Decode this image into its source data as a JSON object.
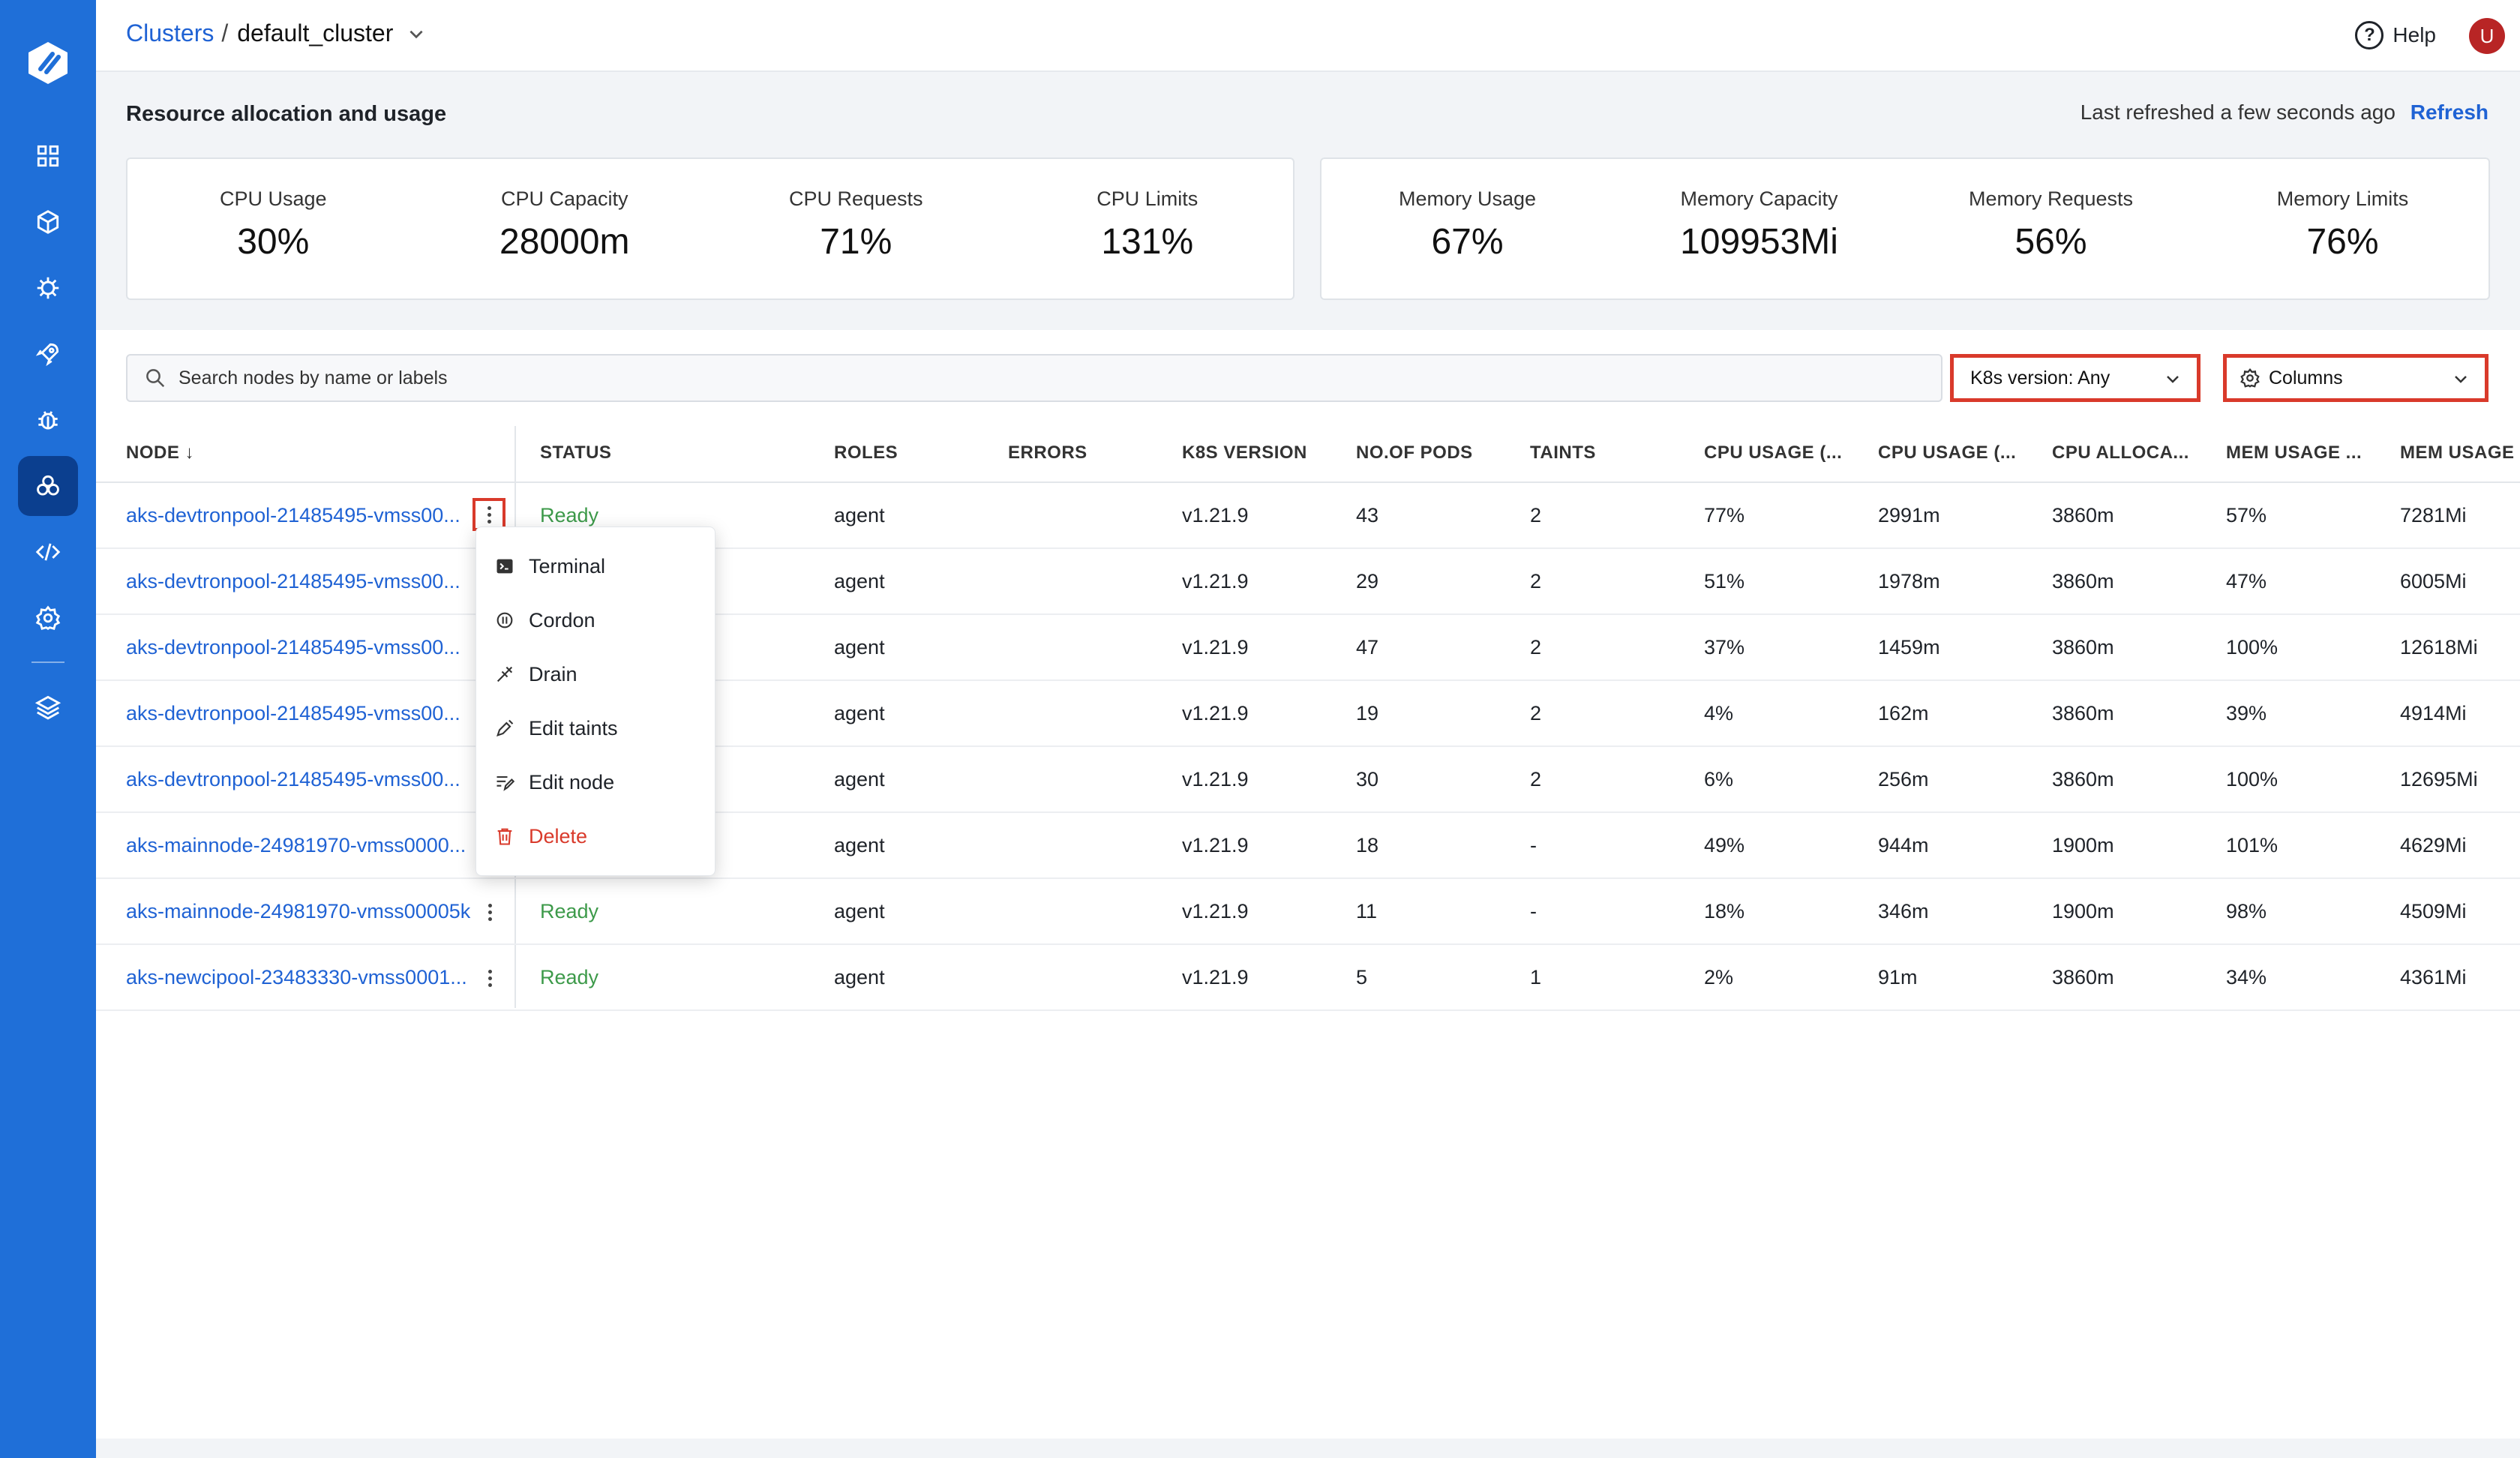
{
  "breadcrumb": {
    "parent": "Clusters",
    "separator": "/",
    "current": "default_cluster"
  },
  "header": {
    "help_label": "Help",
    "avatar_initial": "U"
  },
  "resource": {
    "title": "Resource allocation and usage",
    "refreshed_text": "Last refreshed a few seconds ago",
    "refresh_label": "Refresh",
    "cpu": [
      {
        "label": "CPU Usage",
        "value": "30%"
      },
      {
        "label": "CPU Capacity",
        "value": "28000m"
      },
      {
        "label": "CPU Requests",
        "value": "71%"
      },
      {
        "label": "CPU Limits",
        "value": "131%"
      }
    ],
    "memory": [
      {
        "label": "Memory Usage",
        "value": "67%"
      },
      {
        "label": "Memory Capacity",
        "value": "109953Mi"
      },
      {
        "label": "Memory Requests",
        "value": "56%"
      },
      {
        "label": "Memory Limits",
        "value": "76%"
      }
    ]
  },
  "filters": {
    "search_placeholder": "Search nodes by name or labels",
    "k8s_version": "K8s version: Any",
    "columns": "Columns"
  },
  "table": {
    "headers": [
      "NODE",
      "STATUS",
      "ROLES",
      "ERRORS",
      "K8S VERSION",
      "NO.OF PODS",
      "TAINTS",
      "CPU USAGE (...",
      "CPU USAGE (...",
      "CPU ALLOCA...",
      "MEM USAGE ...",
      "MEM USAGE ..."
    ],
    "sort_indicator": "↓",
    "rows": [
      [
        "aks-devtronpool-21485495-vmss00...",
        "Ready",
        "agent",
        "",
        "v1.21.9",
        "43",
        "2",
        "77%",
        "2991m",
        "3860m",
        "57%",
        "7281Mi"
      ],
      [
        "aks-devtronpool-21485495-vmss00...",
        "",
        "agent",
        "",
        "v1.21.9",
        "29",
        "2",
        "51%",
        "1978m",
        "3860m",
        "47%",
        "6005Mi"
      ],
      [
        "aks-devtronpool-21485495-vmss00...",
        "",
        "agent",
        "",
        "v1.21.9",
        "47",
        "2",
        "37%",
        "1459m",
        "3860m",
        "100%",
        "12618Mi"
      ],
      [
        "aks-devtronpool-21485495-vmss00...",
        "",
        "agent",
        "",
        "v1.21.9",
        "19",
        "2",
        "4%",
        "162m",
        "3860m",
        "39%",
        "4914Mi"
      ],
      [
        "aks-devtronpool-21485495-vmss00...",
        "",
        "agent",
        "",
        "v1.21.9",
        "30",
        "2",
        "6%",
        "256m",
        "3860m",
        "100%",
        "12695Mi"
      ],
      [
        "aks-mainnode-24981970-vmss0000...",
        "",
        "agent",
        "",
        "v1.21.9",
        "18",
        "-",
        "49%",
        "944m",
        "1900m",
        "101%",
        "4629Mi"
      ],
      [
        "aks-mainnode-24981970-vmss00005k",
        "Ready",
        "agent",
        "",
        "v1.21.9",
        "11",
        "-",
        "18%",
        "346m",
        "1900m",
        "98%",
        "4509Mi"
      ],
      [
        "aks-newcipool-23483330-vmss0001...",
        "Ready",
        "agent",
        "",
        "v1.21.9",
        "5",
        "1",
        "2%",
        "91m",
        "3860m",
        "34%",
        "4361Mi"
      ]
    ]
  },
  "menu": {
    "items": [
      {
        "label": "Terminal",
        "icon": "terminal-icon"
      },
      {
        "label": "Cordon",
        "icon": "cordon-icon"
      },
      {
        "label": "Drain",
        "icon": "drain-icon"
      },
      {
        "label": "Edit taints",
        "icon": "edit-taints-icon"
      },
      {
        "label": "Edit node",
        "icon": "edit-node-icon"
      },
      {
        "label": "Delete",
        "icon": "trash-icon"
      }
    ]
  },
  "colors": {
    "sidebar": "#1f6fd8",
    "link": "#1f62d4",
    "status_ready": "#3d9a4a",
    "highlight": "#d93a2b"
  }
}
